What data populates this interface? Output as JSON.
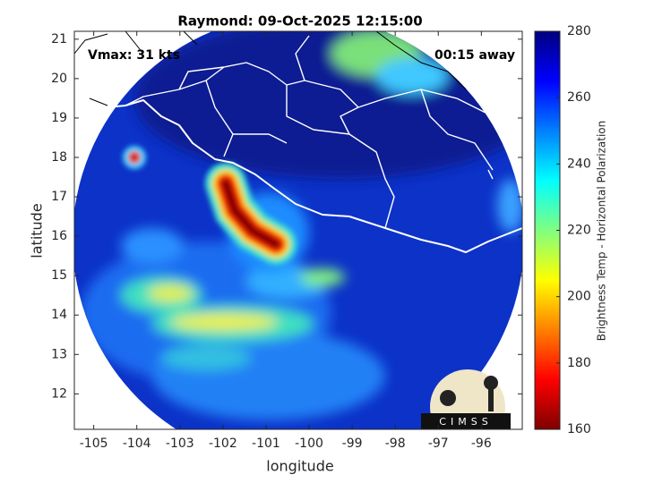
{
  "title": "Raymond: 09-Oct-2025 12:15:00",
  "annotations": {
    "vmax": "Vmax: 31 kts",
    "away": "00:15 away"
  },
  "chart_data": {
    "type": "map",
    "x_label": "longitude",
    "y_label": "latitude",
    "xlim": [
      -105.45,
      -95.05
    ],
    "xticks": [
      -105,
      -104,
      -103,
      -102,
      -101,
      -100,
      -99,
      -98,
      -97,
      -96
    ],
    "ylim": [
      11.1,
      21.2
    ],
    "yticks": [
      12,
      13,
      14,
      15,
      16,
      17,
      18,
      19,
      20,
      21
    ],
    "colorbar": {
      "label": "Brightness Temp - Horizontal Polarization",
      "lim": [
        160,
        280
      ],
      "ticks": [
        160,
        180,
        200,
        220,
        240,
        260,
        280
      ],
      "colormap": [
        "#7f0000",
        "#ff0000",
        "#ff8000",
        "#ffff00",
        "#80ff80",
        "#00ffff",
        "#0080ff",
        "#0000ff",
        "#00007f"
      ]
    },
    "logo": "CIMSS"
  }
}
